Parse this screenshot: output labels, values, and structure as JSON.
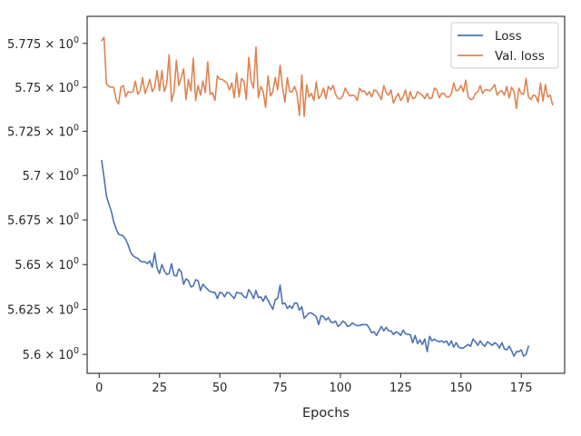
{
  "chart_data": {
    "type": "line",
    "title": "",
    "xlabel": "Epochs",
    "ylabel": "",
    "xlim": [
      -5,
      193
    ],
    "ylim": [
      5.5895,
      5.7905
    ],
    "y_scale": "log",
    "grid": false,
    "legend_position": "top-right",
    "x_ticks": [
      0,
      25,
      50,
      75,
      100,
      125,
      150,
      175
    ],
    "x_tick_labels": [
      "0",
      "25",
      "50",
      "75",
      "100",
      "125",
      "150",
      "175"
    ],
    "y_ticks": [
      5.6,
      5.625,
      5.65,
      5.675,
      5.7,
      5.725,
      5.75,
      5.775
    ],
    "y_tick_labels": [
      "5.6 × 10",
      "5.625 × 10",
      "5.65 × 10",
      "5.675 × 10",
      "5.7 × 10",
      "5.725 × 10",
      "5.75 × 10",
      "5.775 × 10"
    ],
    "y_tick_exponent": "0",
    "series": [
      {
        "name": "Loss",
        "color": "#4c72b0",
        "x_start": 1,
        "values": [
          5.7085,
          5.699,
          5.6885,
          5.684,
          5.68,
          5.674,
          5.67,
          5.667,
          5.6665,
          5.666,
          5.664,
          5.661,
          5.657,
          5.655,
          5.654,
          5.6535,
          5.652,
          5.6515,
          5.6515,
          5.6505,
          5.652,
          5.6485,
          5.6565,
          5.648,
          5.645,
          5.65,
          5.6465,
          5.6445,
          5.645,
          5.6505,
          5.644,
          5.6435,
          5.6475,
          5.646,
          5.639,
          5.642,
          5.641,
          5.6375,
          5.638,
          5.6415,
          5.641,
          5.6355,
          5.639,
          5.6375,
          5.636,
          5.635,
          5.6345,
          5.6345,
          5.631,
          5.6345,
          5.634,
          5.632,
          5.6345,
          5.634,
          5.6325,
          5.631,
          5.6345,
          5.634,
          5.634,
          5.632,
          5.6315,
          5.636,
          5.634,
          5.631,
          5.6355,
          5.6315,
          5.632,
          5.6295,
          5.6325,
          5.63,
          5.6275,
          5.625,
          5.6305,
          5.631,
          5.6385,
          5.628,
          5.6285,
          5.6255,
          5.627,
          5.6255,
          5.6285,
          5.6285,
          5.6245,
          5.6265,
          5.62,
          5.6215,
          5.623,
          5.623,
          5.622,
          5.621,
          5.6165,
          5.6215,
          5.621,
          5.619,
          5.6205,
          5.618,
          5.6175,
          5.6185,
          5.6155,
          5.6165,
          5.6185,
          5.6175,
          5.6155,
          5.616,
          5.6175,
          5.6165,
          5.616,
          5.616,
          5.6165,
          5.6165,
          5.6165,
          5.6145,
          5.612,
          5.6125,
          5.6105,
          5.613,
          5.6155,
          5.613,
          5.615,
          5.613,
          5.613,
          5.611,
          5.6125,
          5.612,
          5.6105,
          5.6135,
          5.6115,
          5.611,
          5.611,
          5.6065,
          5.6105,
          5.606,
          5.608,
          5.6055,
          5.6085,
          5.6015,
          5.61,
          5.6075,
          5.6085,
          5.6075,
          5.607,
          5.6075,
          5.6065,
          5.6075,
          5.605,
          5.6075,
          5.604,
          5.6065,
          5.604,
          5.6035,
          5.6035,
          5.6045,
          5.6055,
          5.6045,
          5.6085,
          5.607,
          5.605,
          5.6075,
          5.6055,
          5.6045,
          5.607,
          5.606,
          5.605,
          5.6065,
          5.6055,
          5.6035,
          5.6065,
          5.603,
          5.6025,
          5.6045,
          5.602,
          5.599,
          5.6015,
          5.6015,
          5.6025,
          5.599,
          5.6,
          5.6045
        ]
      },
      {
        "name": "Val. loss",
        "color": "#dd8452",
        "x_start": 1,
        "values": [
          5.7765,
          5.7785,
          5.752,
          5.7505,
          5.75,
          5.75,
          5.743,
          5.7405,
          5.75,
          5.751,
          5.7445,
          5.7475,
          5.747,
          5.7475,
          5.7535,
          5.746,
          5.748,
          5.7555,
          5.7465,
          5.75,
          5.7545,
          5.7475,
          5.75,
          5.7595,
          5.748,
          5.7595,
          5.7475,
          5.752,
          5.7685,
          5.742,
          5.7475,
          5.7655,
          5.751,
          5.7555,
          5.7605,
          5.743,
          5.7545,
          5.748,
          5.7665,
          5.7425,
          5.751,
          5.7455,
          5.7535,
          5.747,
          5.7645,
          5.746,
          5.747,
          5.7425,
          5.7565,
          5.7545,
          5.7545,
          5.7535,
          5.7525,
          5.7485,
          5.7525,
          5.744,
          5.758,
          5.7445,
          5.755,
          5.7535,
          5.743,
          5.767,
          5.7535,
          5.7495,
          5.773,
          5.744,
          5.7505,
          5.7475,
          5.7385,
          5.7565,
          5.745,
          5.7475,
          5.7555,
          5.7485,
          5.7625,
          5.75,
          5.7415,
          5.7555,
          5.7475,
          5.7475,
          5.7505,
          5.7465,
          5.734,
          5.757,
          5.7335,
          5.7515,
          5.7445,
          5.7465,
          5.7425,
          5.753,
          5.7435,
          5.7455,
          5.7495,
          5.7435,
          5.7505,
          5.7485,
          5.751,
          5.746,
          5.7435,
          5.7435,
          5.745,
          5.7495,
          5.747,
          5.745,
          5.7455,
          5.745,
          5.7425,
          5.7495,
          5.7475,
          5.748,
          5.7455,
          5.7475,
          5.7445,
          5.7485,
          5.748,
          5.7455,
          5.743,
          5.751,
          5.747,
          5.7455,
          5.7485,
          5.741,
          5.744,
          5.7465,
          5.7425,
          5.7445,
          5.7485,
          5.7415,
          5.7475,
          5.7435,
          5.744,
          5.7475,
          5.7465,
          5.7455,
          5.7435,
          5.7465,
          5.7435,
          5.744,
          5.7495,
          5.7485,
          5.744,
          5.7465,
          5.7465,
          5.7445,
          5.7445,
          5.746,
          5.7525,
          5.748,
          5.7485,
          5.751,
          5.7475,
          5.754,
          5.7445,
          5.743,
          5.7435,
          5.7465,
          5.7475,
          5.751,
          5.7465,
          5.7485,
          5.7485,
          5.748,
          5.7495,
          5.7515,
          5.7455,
          5.7475,
          5.748,
          5.7455,
          5.7505,
          5.744,
          5.75,
          5.7475,
          5.738,
          5.7495,
          5.7465,
          5.746,
          5.755,
          5.7445,
          5.743,
          5.7455,
          5.745,
          5.7415,
          5.7525,
          5.742,
          5.7515,
          5.7445,
          5.7455,
          5.74
        ]
      }
    ]
  }
}
